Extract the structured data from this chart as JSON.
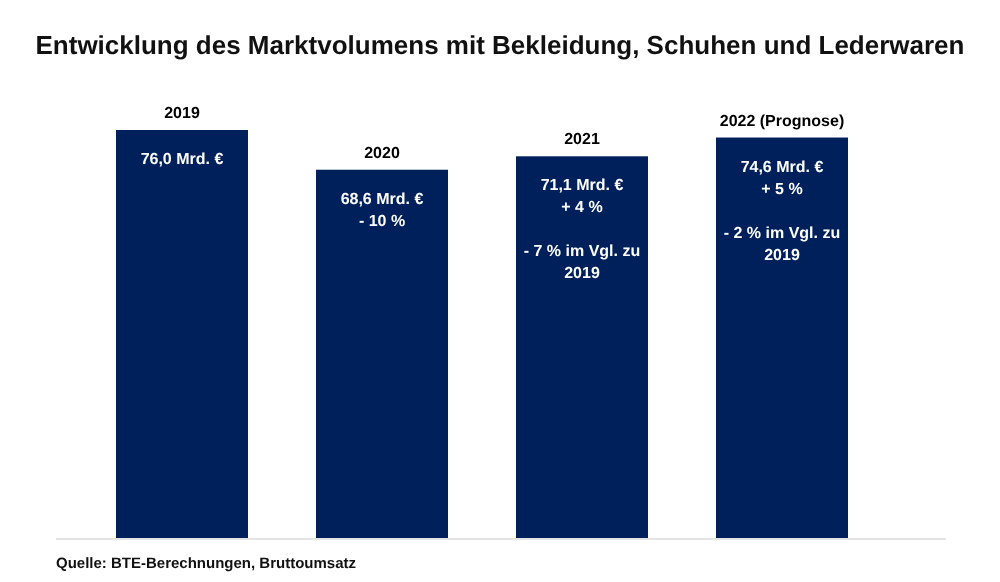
{
  "chart_data": {
    "type": "bar",
    "title": "Entwicklung des Marktvolumens mit Bekleidung, Schuhen und Lederwaren",
    "categories": [
      "2019",
      "2020",
      "2021",
      "2022 (Prognose)"
    ],
    "values": [
      76.0,
      68.6,
      71.1,
      74.6
    ],
    "color": "#00205b",
    "value_labels": [
      "76,0 Mrd. €",
      "68,6 Mrd. €\n- 10 %",
      "71,1 Mrd. €\n+ 4 %\n\n- 7 % im Vgl. zu\n2019",
      "74,6 Mrd. €\n+ 5  %\n\n- 2 % im Vgl. zu\n2019"
    ],
    "annotations": [
      "Quelle: BTE-Berechnungen, Bruttoumsatz"
    ]
  }
}
